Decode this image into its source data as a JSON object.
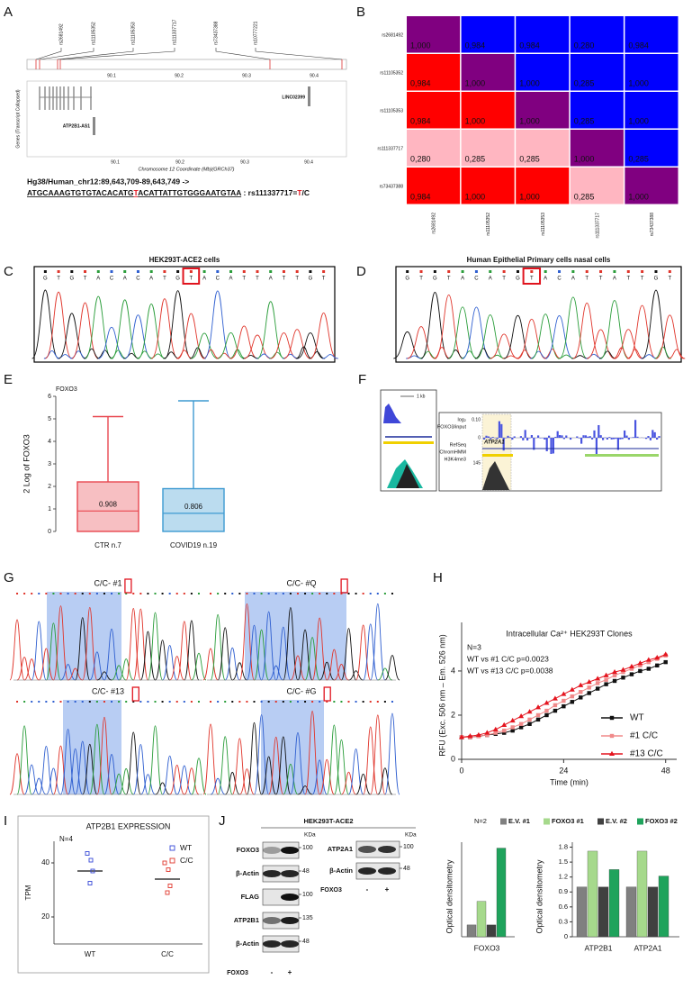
{
  "panel_labels": [
    "A",
    "B",
    "C",
    "D",
    "E",
    "F",
    "G",
    "H",
    "I",
    "J"
  ],
  "panel_a": {
    "snps": [
      "rs2681492",
      "rs11105352",
      "rs11105353",
      "rs111337717",
      "rs73437388",
      "rs10777221"
    ],
    "xticks": [
      "90.1",
      "90.2",
      "90.3",
      "90.4"
    ],
    "genes": [
      "LINC02399",
      "ATP2B1-AS1"
    ],
    "y_label": "Genes (Transcript Collapsed)",
    "x_label": "Chromosome 12 Coordinate (Mb)(GRCh37)",
    "locus": "Hg38/Human_chr12:89,643,709-89,643,749 ->",
    "sequence": [
      "ATGCAAAGTGTGTACACATG",
      "T",
      "ACATTATTGTGGGAATGTAA"
    ],
    "snp_note": [
      " : rs111337717=",
      "T",
      "/C"
    ]
  },
  "panel_c": {
    "title": "HEK293T-ACE2 cells",
    "bases": [
      "G",
      "T",
      "G",
      "T",
      "A",
      "C",
      "A",
      "C",
      "A",
      "T",
      "G",
      "T",
      "A",
      "C",
      "A",
      "T",
      "T",
      "A",
      "T",
      "T",
      "G",
      "T"
    ],
    "highlight": 11
  },
  "panel_d": {
    "title": "Human Epithelial Primary cells nasal cells",
    "bases": [
      "G",
      "T",
      "G",
      "T",
      "A",
      "C",
      "A",
      "T",
      "G",
      "T",
      "A",
      "C",
      "A",
      "T",
      "T",
      "A",
      "T",
      "T",
      "G",
      "T"
    ],
    "highlight": 9
  },
  "panel_f": {
    "scale": "1 kb",
    "track_label": [
      "log₂",
      "FOXO3/input"
    ],
    "ticks": [
      "0.10",
      "0",
      "145"
    ],
    "gene": "ATP2A1",
    "tracks": [
      "RefSeq",
      "ChromHMM",
      "H3K4me3"
    ]
  },
  "panel_g": {
    "titles": [
      "C/C- #1",
      "C/C- #Q",
      "C/C- #13",
      "C/C- #G"
    ]
  },
  "panel_j": {
    "title": "HEK293T-ACE2",
    "unit": "KDa",
    "blot1": {
      "rows": [
        {
          "label": "FOXO3",
          "marker": 100
        },
        {
          "label": "β-Actin",
          "marker": 48
        },
        {
          "label": "FLAG",
          "marker": 100
        },
        {
          "label": "ATP2B1",
          "marker": 135
        },
        {
          "label": "β-Actin",
          "marker": 48
        }
      ],
      "treatment": "FOXO3",
      "lanes": [
        "-",
        "+"
      ]
    },
    "blot2": {
      "rows": [
        {
          "label": "ATP2A1",
          "marker": 100
        },
        {
          "label": "β-Actin",
          "marker": 48
        }
      ],
      "treatment": "FOXO3",
      "lanes": [
        "-",
        "+"
      ]
    }
  },
  "chart_data": [
    {
      "type": "heatmap",
      "rows": [
        "rs2681492",
        "rs11105352",
        "rs11105353",
        "rs111337717",
        "rs73437388"
      ],
      "columns": [
        "rs2681492",
        "rs11105352",
        "rs11105353",
        "rs111337717",
        "rs73437388"
      ],
      "values": [
        [
          1,
          0.984,
          0.984,
          0.28,
          0.984
        ],
        [
          0.984,
          1,
          1,
          0.285,
          1
        ],
        [
          0.984,
          1,
          1,
          0.285,
          1
        ],
        [
          0.28,
          0.285,
          0.285,
          1,
          0.285
        ],
        [
          0.984,
          1,
          1,
          0.285,
          1
        ]
      ],
      "value_labels": [
        [
          "1,000",
          "0,984",
          "0,984",
          "0,280",
          "0,984"
        ],
        [
          "0,984",
          "1,000",
          "1,000",
          "0,285",
          "1,000"
        ],
        [
          "0,984",
          "1,000",
          "1,000",
          "0,285",
          "1,000"
        ],
        [
          "0,280",
          "0,285",
          "0,285",
          "1,000",
          "0,285"
        ],
        [
          "0,984",
          "1,000",
          "1,000",
          "0,285",
          "1,000"
        ]
      ],
      "colors": [
        [
          "#800080",
          "#0000ff",
          "#0000ff",
          "#0000ff",
          "#0000ff"
        ],
        [
          "#ff0000",
          "#800080",
          "#0000ff",
          "#0000ff",
          "#0000ff"
        ],
        [
          "#ff0000",
          "#ff0000",
          "#800080",
          "#0000ff",
          "#0000ff"
        ],
        [
          "#ffb6c1",
          "#ffb6c1",
          "#ffb6c1",
          "#800080",
          "#0000ff"
        ],
        [
          "#ff0000",
          "#ff0000",
          "#ff0000",
          "#ffb6c1",
          "#800080"
        ]
      ]
    },
    {
      "type": "box",
      "title": "FOXO3",
      "y_label": "2 Log of FOXO3",
      "categories": [
        "CTR n.7",
        "COVID19 n.19"
      ],
      "min": [
        0,
        0
      ],
      "q1": [
        0,
        0
      ],
      "median": [
        0.908,
        0.806
      ],
      "q3": [
        2.2,
        1.9
      ],
      "max": [
        5.1,
        5.8
      ],
      "colors": [
        "#e8474f",
        "#3d9ad1"
      ],
      "ylim": [
        0,
        6
      ],
      "yticks": [
        0,
        1,
        2,
        3,
        4,
        5,
        6
      ]
    },
    {
      "type": "line",
      "title": "Intracellular Ca²⁺ HEK293T Clones",
      "annotations": [
        "N=3",
        "WT vs #1 C/C p=0.0023",
        "WT vs #13 C/C p=0.0038"
      ],
      "y_label": "RFU (Exc. 506 nm – Em. 526 nm)",
      "x_label": "Time (min)",
      "x": [
        0,
        2,
        4,
        6,
        8,
        10,
        12,
        14,
        16,
        18,
        20,
        22,
        24,
        26,
        28,
        30,
        32,
        34,
        36,
        38,
        40,
        42,
        44,
        46,
        48
      ],
      "series": [
        {
          "name": "WT",
          "color": "#111111",
          "marker": "square",
          "values": [
            1.0,
            1.0,
            1.05,
            1.1,
            1.15,
            1.2,
            1.3,
            1.45,
            1.6,
            1.8,
            2.0,
            2.2,
            2.4,
            2.6,
            2.8,
            3.0,
            3.2,
            3.4,
            3.55,
            3.7,
            3.85,
            4.0,
            4.1,
            4.25,
            4.4
          ]
        },
        {
          "name": "#1 C/C",
          "color": "#f08a8a",
          "marker": "square",
          "values": [
            1.0,
            1.0,
            1.05,
            1.1,
            1.2,
            1.3,
            1.45,
            1.6,
            1.8,
            2.0,
            2.2,
            2.45,
            2.65,
            2.85,
            3.05,
            3.25,
            3.45,
            3.6,
            3.8,
            3.95,
            4.1,
            4.25,
            4.4,
            4.55,
            4.7
          ]
        },
        {
          "name": "#13 C/C",
          "color": "#e4141e",
          "marker": "triangle",
          "values": [
            1.0,
            1.05,
            1.1,
            1.2,
            1.35,
            1.55,
            1.75,
            1.95,
            2.15,
            2.35,
            2.55,
            2.75,
            2.95,
            3.15,
            3.35,
            3.5,
            3.65,
            3.8,
            3.95,
            4.05,
            4.2,
            4.35,
            4.5,
            4.6,
            4.75
          ]
        }
      ],
      "xlim": [
        0,
        50.6
      ],
      "ylim": [
        0,
        6.2
      ],
      "xticks": [
        0,
        24,
        48
      ],
      "yticks": [
        0,
        2,
        4
      ]
    },
    {
      "type": "scatter",
      "title": "ATP2B1 EXPRESSION",
      "annotation": "N=4",
      "y_label": "TPM",
      "categories": [
        "WT",
        "C/C"
      ],
      "series": [
        {
          "name": "WT",
          "color": "#3548d8",
          "values": [
            43.5,
            41,
            37,
            32.5
          ]
        },
        {
          "name": "C/C",
          "color": "#e0352b",
          "values": [
            40,
            37.5,
            31.5,
            29
          ]
        }
      ],
      "means": [
        37,
        34
      ],
      "ylim": [
        10,
        48
      ],
      "yticks": [
        20,
        40
      ]
    },
    {
      "type": "bar",
      "annotation": "N=2",
      "y_label": "Optical densitometry",
      "categories": [
        "FOXO3"
      ],
      "series": [
        {
          "name": "E.V. #1",
          "color": "#808080",
          "values": [
            1
          ]
        },
        {
          "name": "FOXO3 #1",
          "color": "#a6d98c",
          "values": [
            3
          ]
        },
        {
          "name": "E.V. #2",
          "color": "#404040",
          "values": [
            1
          ]
        },
        {
          "name": "FOXO3 #2",
          "color": "#1fa35c",
          "values": [
            7.5
          ]
        }
      ],
      "ylim": [
        0,
        8
      ]
    },
    {
      "type": "bar",
      "y_label": "Optical densitometry",
      "categories": [
        "ATP2B1",
        "ATP2A1"
      ],
      "series": [
        {
          "color": "#808080",
          "values": [
            1,
            1
          ]
        },
        {
          "color": "#a6d98c",
          "values": [
            1.72,
            1.72
          ]
        },
        {
          "color": "#404040",
          "values": [
            1,
            1
          ]
        },
        {
          "color": "#1fa35c",
          "values": [
            1.35,
            1.22
          ]
        }
      ],
      "ylim": [
        0,
        1.9
      ],
      "yticks": [
        0,
        0.3,
        0.6,
        0.9,
        1.2,
        1.5,
        1.8
      ]
    }
  ]
}
